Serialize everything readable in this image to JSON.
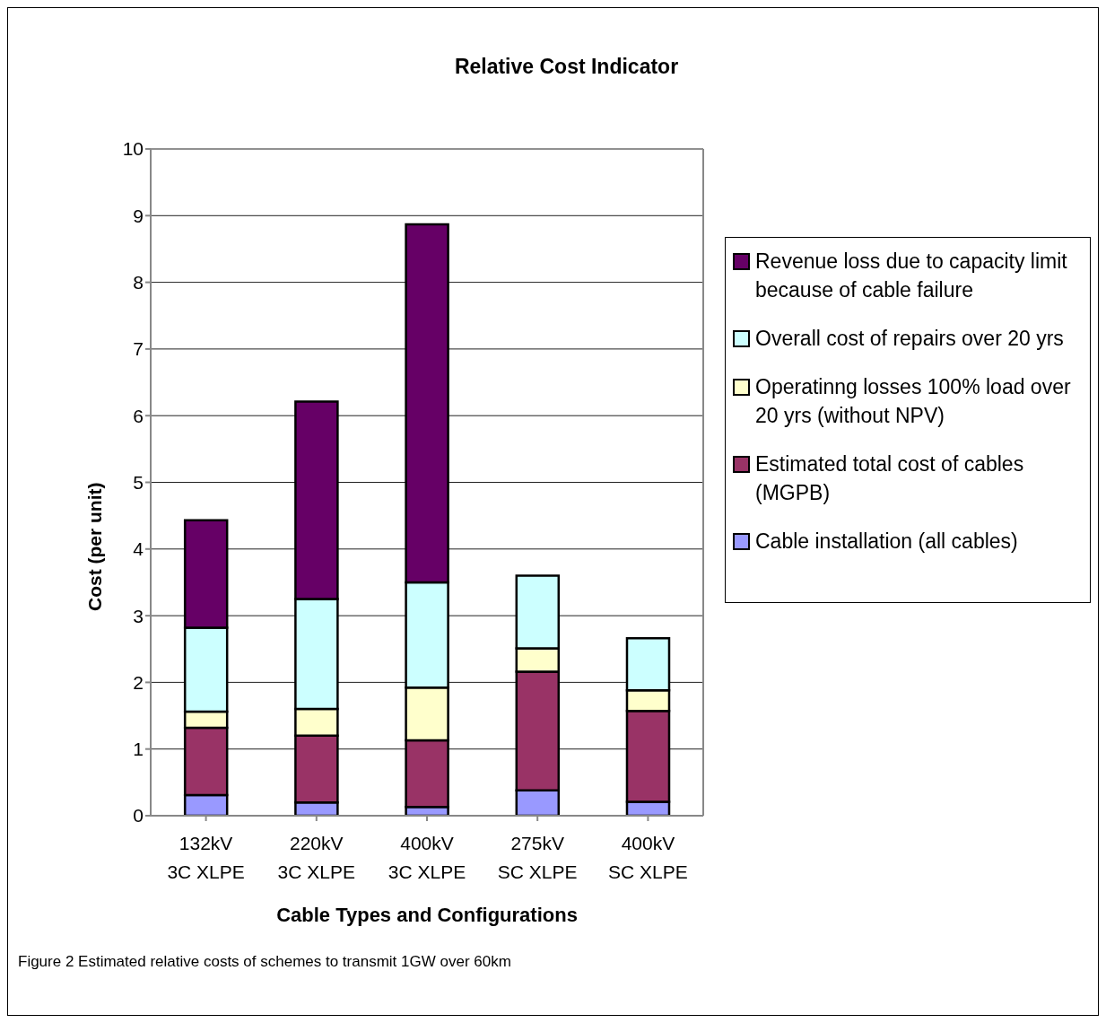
{
  "chart_data": {
    "type": "bar",
    "title": "Relative Cost Indicator",
    "xlabel": "Cable Types and Configurations",
    "ylabel": "Cost (per unit)",
    "annotations": [
      "Figure 2 Estimated relative costs of schemes to transmit 1GW over 60km"
    ],
    "categories": [
      "132kV 3C XLPE",
      "220kV 3C XLPE",
      "400kV 3C XLPE",
      "275kV SC XLPE",
      "400kV SC XLPE"
    ],
    "stacked": true,
    "series": [
      {
        "name": "Cable installation (all cables)",
        "color": "#9999ff",
        "values": [
          0.31,
          0.2,
          0.13,
          0.38,
          0.21
        ]
      },
      {
        "name": "Estimated total cost of cables (MGPB)",
        "color": "#993366",
        "values": [
          1.01,
          1.0,
          1.0,
          1.78,
          1.36
        ]
      },
      {
        "name": "Operatinng losses 100% load over 20 yrs (without NPV)",
        "color": "#ffffcc",
        "values": [
          0.24,
          0.4,
          0.79,
          0.35,
          0.31
        ]
      },
      {
        "name": "Overall cost of repairs over 20 yrs",
        "color": "#ccffff",
        "values": [
          1.26,
          1.65,
          1.58,
          1.09,
          0.78
        ]
      },
      {
        "name": "Revenue loss due to capacity limit because of cable failure",
        "color": "#660066",
        "values": [
          1.61,
          2.96,
          5.37,
          0,
          0
        ]
      }
    ],
    "ylim": [
      0,
      10
    ],
    "yticks": [
      0,
      1,
      2,
      3,
      4,
      5,
      6,
      7,
      8,
      9,
      10
    ],
    "grid": "y",
    "legend": "right"
  }
}
